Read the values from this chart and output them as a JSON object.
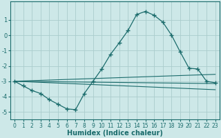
{
  "xlabel": "Humidex (Indice chaleur)",
  "bg_color": "#cde8e8",
  "grid_color": "#aacccc",
  "line_color": "#1a6b6b",
  "marker": "+",
  "marker_size": 4,
  "marker_lw": 1.0,
  "ylim": [
    -5.5,
    2.2
  ],
  "xlim": [
    -0.5,
    23.5
  ],
  "yticks": [
    -5,
    -4,
    -3,
    -2,
    -1,
    0,
    1
  ],
  "xticks": [
    0,
    1,
    2,
    3,
    4,
    5,
    6,
    7,
    8,
    9,
    10,
    11,
    12,
    13,
    14,
    15,
    16,
    17,
    18,
    19,
    20,
    21,
    22,
    23
  ],
  "series1_x": [
    0,
    1,
    2,
    3,
    4,
    5,
    6,
    7,
    8,
    9,
    10,
    11,
    12,
    13,
    14,
    15,
    16,
    17,
    18,
    19,
    20,
    21,
    22,
    23
  ],
  "series1_y": [
    -3.0,
    -3.3,
    -3.6,
    -3.8,
    -4.2,
    -4.5,
    -4.8,
    -4.85,
    -3.8,
    -3.0,
    -2.2,
    -1.25,
    -0.5,
    0.3,
    1.35,
    1.55,
    1.3,
    0.85,
    0.0,
    -1.1,
    -2.15,
    -2.2,
    -3.0,
    -3.1
  ],
  "line2_x0": 0,
  "line2_x1": 23,
  "line2_y0": -3.0,
  "line2_y1": -3.15,
  "line3_x0": 0,
  "line3_x1": 23,
  "line3_y0": -3.0,
  "line3_y1": -2.55,
  "line4_x0": 0,
  "line4_x1": 23,
  "line4_y0": -3.0,
  "line4_y1": -3.55
}
